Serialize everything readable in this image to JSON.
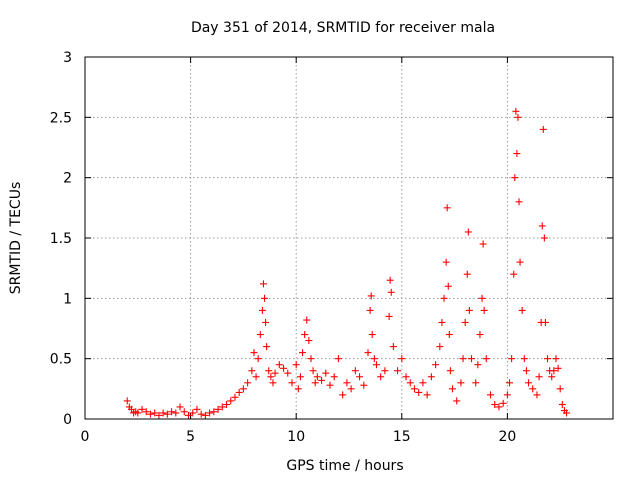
{
  "chart_data": {
    "type": "scatter",
    "title": "Day 351 of 2014, SRMTID for receiver mala",
    "xlabel": "GPS time / hours",
    "ylabel": "SRMTID / TECUs",
    "xlim": [
      0,
      25
    ],
    "ylim": [
      0,
      3
    ],
    "xticks": [
      0,
      5,
      10,
      15,
      20
    ],
    "yticks": [
      0,
      0.5,
      1,
      1.5,
      2,
      2.5,
      3
    ],
    "xtick_labels": [
      "0",
      "5",
      "10",
      "15",
      "20"
    ],
    "ytick_labels": [
      "0",
      "0.5",
      "1",
      "1.5",
      "2",
      "2.5",
      "3"
    ],
    "grid": true,
    "marker": "plus",
    "series": [
      {
        "name": "SRMTID",
        "color": "#ff0000",
        "x": [
          2.0,
          2.1,
          2.2,
          2.3,
          2.4,
          2.5,
          2.7,
          2.9,
          3.1,
          3.3,
          3.5,
          3.7,
          3.9,
          4.1,
          4.3,
          4.5,
          4.7,
          4.9,
          5.1,
          5.3,
          5.5,
          5.7,
          5.9,
          6.1,
          6.3,
          6.5,
          6.7,
          6.9,
          7.1,
          7.3,
          7.5,
          7.7,
          7.9,
          8.0,
          8.1,
          8.2,
          8.3,
          8.4,
          8.45,
          8.5,
          8.55,
          8.6,
          8.7,
          8.8,
          8.9,
          9.0,
          9.2,
          9.4,
          9.6,
          9.8,
          10.0,
          10.1,
          10.2,
          10.3,
          10.4,
          10.5,
          10.6,
          10.7,
          10.8,
          10.9,
          11.0,
          11.2,
          11.4,
          11.6,
          11.8,
          12.0,
          12.2,
          12.4,
          12.6,
          12.8,
          13.0,
          13.2,
          13.4,
          13.5,
          13.55,
          13.6,
          13.7,
          13.8,
          14.0,
          14.2,
          14.4,
          14.45,
          14.5,
          14.6,
          14.8,
          15.0,
          15.2,
          15.4,
          15.6,
          15.8,
          16.0,
          16.2,
          16.4,
          16.6,
          16.8,
          16.9,
          17.0,
          17.1,
          17.15,
          17.2,
          17.25,
          17.3,
          17.4,
          17.6,
          17.8,
          17.9,
          18.0,
          18.1,
          18.15,
          18.2,
          18.3,
          18.5,
          18.6,
          18.7,
          18.8,
          18.85,
          18.9,
          19.0,
          19.2,
          19.4,
          19.6,
          19.8,
          20.0,
          20.1,
          20.2,
          20.3,
          20.35,
          20.4,
          20.45,
          20.5,
          20.55,
          20.6,
          20.7,
          20.8,
          20.9,
          21.0,
          21.2,
          21.4,
          21.5,
          21.6,
          21.65,
          21.7,
          21.75,
          21.8,
          21.9,
          22.0,
          22.1,
          22.2,
          22.3,
          22.4,
          22.5,
          22.6,
          22.7,
          22.8
        ],
        "y": [
          0.15,
          0.1,
          0.08,
          0.05,
          0.06,
          0.05,
          0.08,
          0.06,
          0.04,
          0.05,
          0.03,
          0.05,
          0.04,
          0.06,
          0.05,
          0.1,
          0.06,
          0.03,
          0.05,
          0.08,
          0.04,
          0.03,
          0.05,
          0.06,
          0.08,
          0.1,
          0.12,
          0.15,
          0.18,
          0.22,
          0.25,
          0.3,
          0.4,
          0.55,
          0.35,
          0.5,
          0.7,
          0.9,
          1.12,
          1.0,
          0.8,
          0.6,
          0.4,
          0.35,
          0.3,
          0.38,
          0.45,
          0.42,
          0.38,
          0.3,
          0.45,
          0.25,
          0.35,
          0.55,
          0.7,
          0.82,
          0.65,
          0.5,
          0.4,
          0.3,
          0.35,
          0.32,
          0.38,
          0.28,
          0.35,
          0.5,
          0.2,
          0.3,
          0.25,
          0.4,
          0.35,
          0.28,
          0.55,
          0.9,
          1.02,
          0.7,
          0.5,
          0.45,
          0.35,
          0.4,
          0.85,
          1.15,
          1.05,
          0.6,
          0.4,
          0.5,
          0.35,
          0.3,
          0.25,
          0.22,
          0.3,
          0.2,
          0.35,
          0.45,
          0.6,
          0.8,
          1.0,
          1.3,
          1.75,
          1.1,
          0.7,
          0.4,
          0.25,
          0.15,
          0.3,
          0.5,
          0.8,
          1.2,
          1.55,
          0.9,
          0.5,
          0.3,
          0.45,
          0.7,
          1.0,
          1.45,
          0.9,
          0.5,
          0.2,
          0.12,
          0.1,
          0.13,
          0.2,
          0.3,
          0.5,
          1.2,
          2.0,
          2.55,
          2.2,
          2.5,
          1.8,
          1.3,
          0.9,
          0.5,
          0.4,
          0.3,
          0.25,
          0.2,
          0.35,
          0.8,
          1.6,
          2.4,
          1.5,
          0.8,
          0.5,
          0.4,
          0.35,
          0.4,
          0.5,
          0.42,
          0.25,
          0.12,
          0.07,
          0.05
        ]
      }
    ]
  }
}
